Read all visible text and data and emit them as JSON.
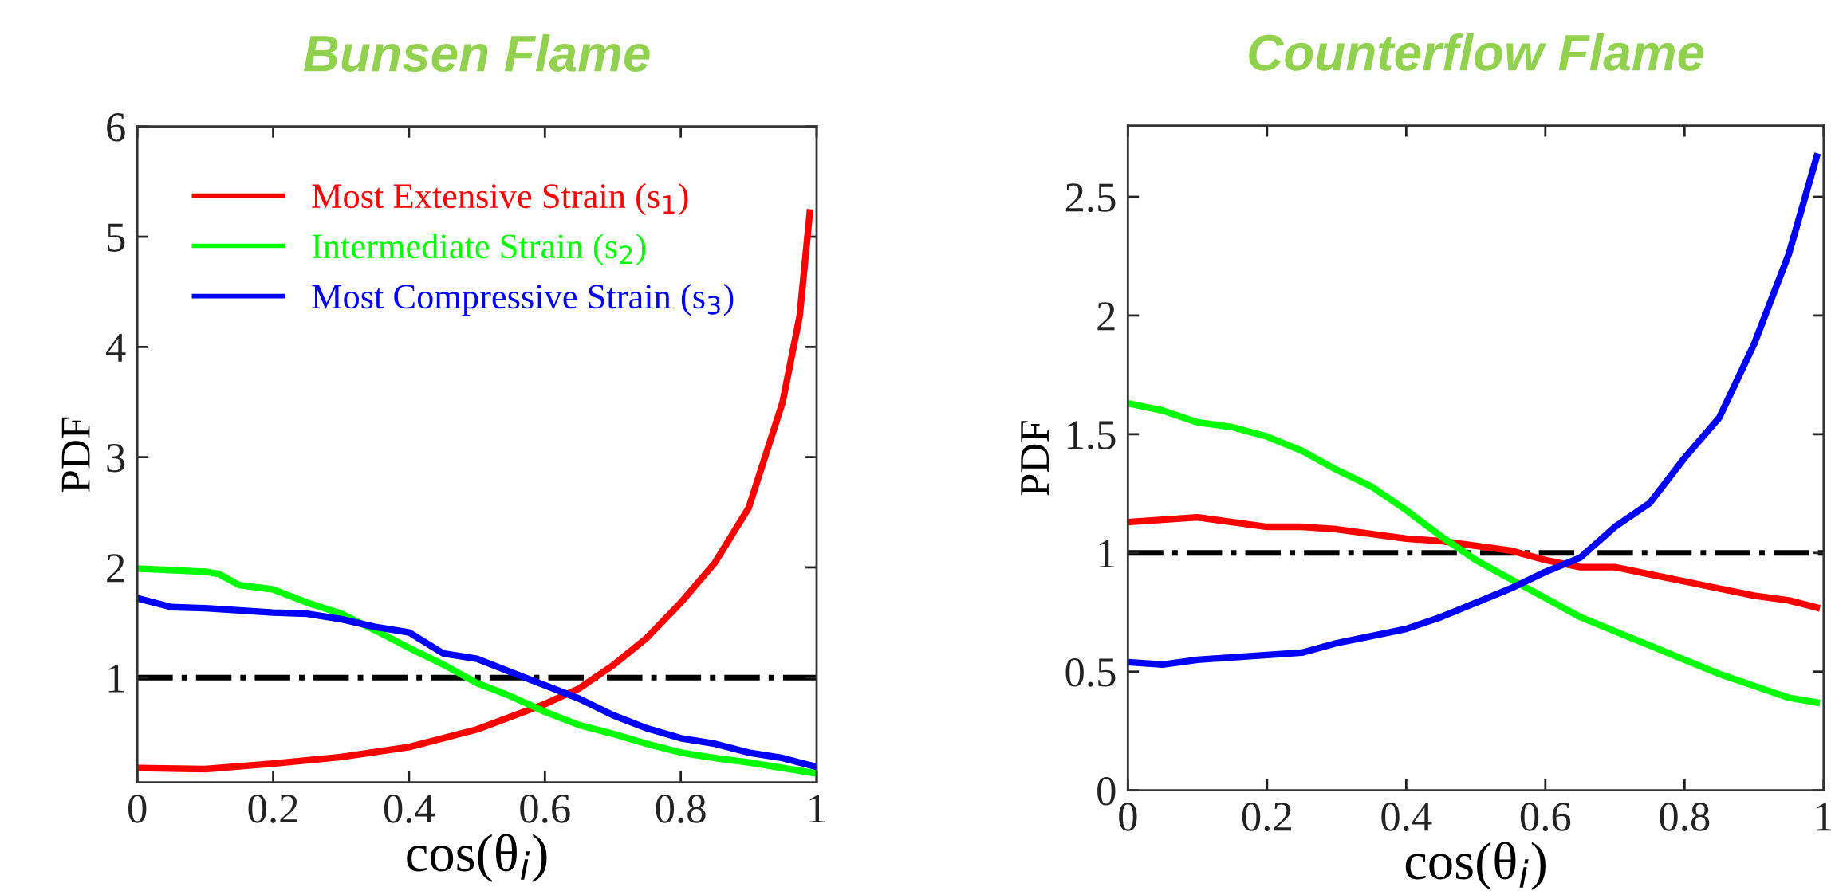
{
  "chart_data": [
    {
      "type": "line",
      "title": "Bunsen Flame",
      "xlabel": "cos(θ$_{i}$)",
      "ylabel": "PDF",
      "xlim": [
        0,
        1
      ],
      "ylim": [
        0.05,
        6
      ],
      "xticks": [
        0,
        0.2,
        0.4,
        0.6,
        0.8,
        1
      ],
      "yticks": [
        1,
        2,
        3,
        4,
        5,
        6
      ],
      "legend": "top left",
      "grid": false,
      "ref_lines": [
        {
          "axis": "y",
          "value": 1,
          "color": "#000000",
          "line_style": "dashdot"
        }
      ],
      "series": [
        {
          "name": "Most Extensive Strain (s$_{1}$)",
          "color": "#ff0000",
          "x": [
            0,
            0.1,
            0.2,
            0.3,
            0.4,
            0.5,
            0.6,
            0.65,
            0.7,
            0.75,
            0.8,
            0.85,
            0.9,
            0.95,
            0.975,
            0.99
          ],
          "values": [
            0.18,
            0.17,
            0.22,
            0.28,
            0.37,
            0.53,
            0.76,
            0.9,
            1.11,
            1.36,
            1.68,
            2.04,
            2.54,
            3.5,
            4.28,
            5.22
          ]
        },
        {
          "name": "Intermediate Strain (s$_{2}$)",
          "color": "#00ff00",
          "x": [
            0,
            0.1,
            0.12,
            0.15,
            0.2,
            0.25,
            0.3,
            0.35,
            0.4,
            0.45,
            0.5,
            0.55,
            0.6,
            0.65,
            0.7,
            0.75,
            0.8,
            0.85,
            0.9,
            0.95,
            1.0
          ],
          "values": [
            1.99,
            1.96,
            1.94,
            1.84,
            1.8,
            1.68,
            1.58,
            1.43,
            1.27,
            1.12,
            0.95,
            0.83,
            0.69,
            0.57,
            0.49,
            0.4,
            0.32,
            0.27,
            0.23,
            0.18,
            0.13
          ]
        },
        {
          "name": "Most Compressive Strain (s$_{3}$)",
          "color": "#0000ff",
          "x": [
            0,
            0.05,
            0.1,
            0.2,
            0.25,
            0.3,
            0.35,
            0.4,
            0.45,
            0.5,
            0.55,
            0.6,
            0.65,
            0.7,
            0.75,
            0.8,
            0.85,
            0.9,
            0.95,
            1.0
          ],
          "values": [
            1.72,
            1.64,
            1.63,
            1.59,
            1.58,
            1.53,
            1.46,
            1.41,
            1.22,
            1.17,
            1.05,
            0.93,
            0.81,
            0.66,
            0.54,
            0.45,
            0.4,
            0.32,
            0.27,
            0.19
          ]
        }
      ]
    },
    {
      "type": "line",
      "title": "Counterflow Flame",
      "xlabel": "cos(θ$_{i}$)",
      "ylabel": "PDF",
      "xlim": [
        0,
        1
      ],
      "ylim": [
        0,
        2.8
      ],
      "xticks": [
        0,
        0.2,
        0.4,
        0.6,
        0.8,
        1
      ],
      "yticks": [
        0,
        0.5,
        1,
        1.5,
        2,
        2.5
      ],
      "grid": false,
      "ref_lines": [
        {
          "axis": "y",
          "value": 1,
          "color": "#000000",
          "line_style": "dashdot"
        }
      ],
      "series": [
        {
          "color": "#ff0000",
          "x": [
            0,
            0.1,
            0.15,
            0.2,
            0.25,
            0.3,
            0.4,
            0.45,
            0.5,
            0.55,
            0.6,
            0.65,
            0.7,
            0.75,
            0.8,
            0.85,
            0.9,
            0.95,
            0.99
          ],
          "values": [
            1.13,
            1.15,
            1.13,
            1.11,
            1.11,
            1.1,
            1.06,
            1.05,
            1.03,
            1.01,
            0.97,
            0.94,
            0.94,
            0.91,
            0.88,
            0.85,
            0.82,
            0.8,
            0.77
          ]
        },
        {
          "color": "#00ff00",
          "x": [
            0,
            0.05,
            0.1,
            0.15,
            0.2,
            0.25,
            0.3,
            0.35,
            0.4,
            0.45,
            0.5,
            0.55,
            0.6,
            0.65,
            0.7,
            0.75,
            0.8,
            0.85,
            0.9,
            0.95,
            0.99
          ],
          "values": [
            1.63,
            1.6,
            1.55,
            1.53,
            1.49,
            1.43,
            1.35,
            1.28,
            1.18,
            1.07,
            0.97,
            0.89,
            0.81,
            0.73,
            0.67,
            0.61,
            0.55,
            0.49,
            0.44,
            0.39,
            0.37
          ]
        },
        {
          "color": "#0000ff",
          "x": [
            0,
            0.05,
            0.1,
            0.15,
            0.2,
            0.25,
            0.3,
            0.35,
            0.4,
            0.45,
            0.5,
            0.55,
            0.6,
            0.65,
            0.7,
            0.75,
            0.8,
            0.85,
            0.9,
            0.95,
            0.99
          ],
          "values": [
            0.54,
            0.53,
            0.55,
            0.56,
            0.57,
            0.58,
            0.62,
            0.65,
            0.68,
            0.73,
            0.79,
            0.85,
            0.92,
            0.98,
            1.11,
            1.21,
            1.4,
            1.57,
            1.88,
            2.26,
            2.67
          ]
        }
      ]
    }
  ]
}
